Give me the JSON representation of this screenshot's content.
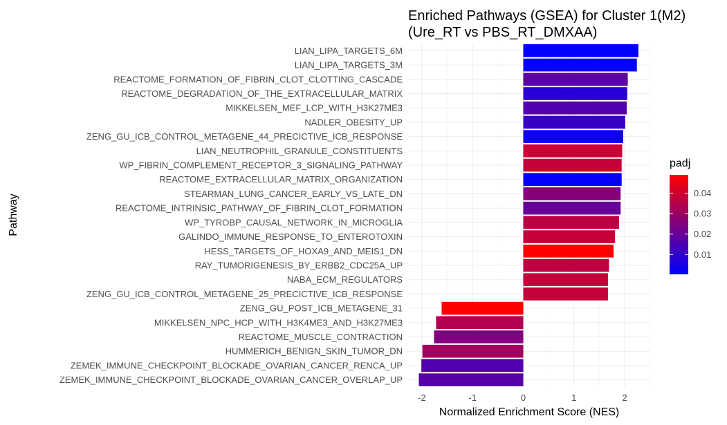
{
  "chart_data": {
    "type": "bar",
    "orientation": "horizontal",
    "title": "Enriched Pathways (GSEA) for Cluster 1(M2)",
    "subtitle": "(Ure_RT vs PBS_RT_DMXAA)",
    "xlabel": "Normalized Enrichment Score (NES)",
    "ylabel": "Pathway",
    "xlim": [
      -2.2,
      2.48
    ],
    "xticks": [
      -2,
      -1,
      0,
      1,
      2
    ],
    "grid": true,
    "legend": {
      "title": "padj",
      "position": "right",
      "type": "colorbar",
      "low_color": "#0000ff",
      "high_color": "#ff0000",
      "min": 0.0003,
      "max": 0.049,
      "ticks": [
        0.01,
        0.02,
        0.03,
        0.04
      ],
      "tick_labels": [
        "0.01",
        "0.02",
        "0.03",
        "0.04"
      ]
    },
    "bars": [
      {
        "pathway": "LIAN_LIPA_TARGETS_6M",
        "nes": 2.27,
        "padj": 0.0005
      },
      {
        "pathway": "LIAN_LIPA_TARGETS_3M",
        "nes": 2.24,
        "padj": 0.0008
      },
      {
        "pathway": "REACTOME_FORMATION_OF_FIBRIN_CLOT_CLOTTING_CASCADE",
        "nes": 2.06,
        "padj": 0.018
      },
      {
        "pathway": "REACTOME_DEGRADATION_OF_THE_EXTRACELLULAR_MATRIX",
        "nes": 2.05,
        "padj": 0.008
      },
      {
        "pathway": "MIKKELSEN_MEF_LCP_WITH_H3K27ME3",
        "nes": 2.04,
        "padj": 0.016
      },
      {
        "pathway": "NADLER_OBESITY_UP",
        "nes": 2.01,
        "padj": 0.011
      },
      {
        "pathway": "ZENG_GU_ICB_CONTROL_METAGENE_44_PRECICTIVE_ICB_RESPONSE",
        "nes": 1.97,
        "padj": 0.003
      },
      {
        "pathway": "LIAN_NEUTROPHIL_GRANULE_CONSTITUENTS",
        "nes": 1.95,
        "padj": 0.039
      },
      {
        "pathway": "WP_FIBRIN_COMPLEMENT_RECEPTOR_3_SIGNALING_PATHWAY",
        "nes": 1.94,
        "padj": 0.038
      },
      {
        "pathway": "REACTOME_EXTRACELLULAR_MATRIX_ORGANIZATION",
        "nes": 1.94,
        "padj": 0.0015
      },
      {
        "pathway": "STEARMAN_LUNG_CANCER_EARLY_VS_LATE_DN",
        "nes": 1.92,
        "padj": 0.026
      },
      {
        "pathway": "REACTOME_INTRINSIC_PATHWAY_OF_FIBRIN_CLOT_FORMATION",
        "nes": 1.92,
        "padj": 0.02
      },
      {
        "pathway": "WP_TYROBP_CAUSAL_NETWORK_IN_MICROGLIA",
        "nes": 1.89,
        "padj": 0.036
      },
      {
        "pathway": "GALINDO_IMMUNE_RESPONSE_TO_ENTEROTOXIN",
        "nes": 1.81,
        "padj": 0.038
      },
      {
        "pathway": "HESS_TARGETS_OF_HOXA9_AND_MEIS1_DN",
        "nes": 1.78,
        "padj": 0.049
      },
      {
        "pathway": "RAY_TUMORIGENESIS_BY_ERBB2_CDC25A_UP",
        "nes": 1.69,
        "padj": 0.037
      },
      {
        "pathway": "NABA_ECM_REGULATORS",
        "nes": 1.67,
        "padj": 0.038
      },
      {
        "pathway": "ZENG_GU_ICB_CONTROL_METAGENE_25_PRECICTIVE_ICB_RESPONSE",
        "nes": 1.67,
        "padj": 0.038
      },
      {
        "pathway": "ZENG_GU_POST_ICB_METAGENE_31",
        "nes": -1.61,
        "padj": 0.049
      },
      {
        "pathway": "MIKKELSEN_NPC_HCP_WITH_H3K4ME3_AND_H3K27ME3",
        "nes": -1.72,
        "padj": 0.034
      },
      {
        "pathway": "REACTOME_MUSCLE_CONTRACTION",
        "nes": -1.76,
        "padj": 0.025
      },
      {
        "pathway": "HUMMERICH_BENIGN_SKIN_TUMOR_DN",
        "nes": -1.99,
        "padj": 0.031
      },
      {
        "pathway": "ZEMEK_IMMUNE_CHECKPOINT_BLOCKADE_OVARIAN_CANCER_RENCA_UP",
        "nes": -2.01,
        "padj": 0.016
      },
      {
        "pathway": "ZEMEK_IMMUNE_CHECKPOINT_BLOCKADE_OVARIAN_CANCER_OVERLAP_UP",
        "nes": -2.06,
        "padj": 0.017
      }
    ]
  }
}
